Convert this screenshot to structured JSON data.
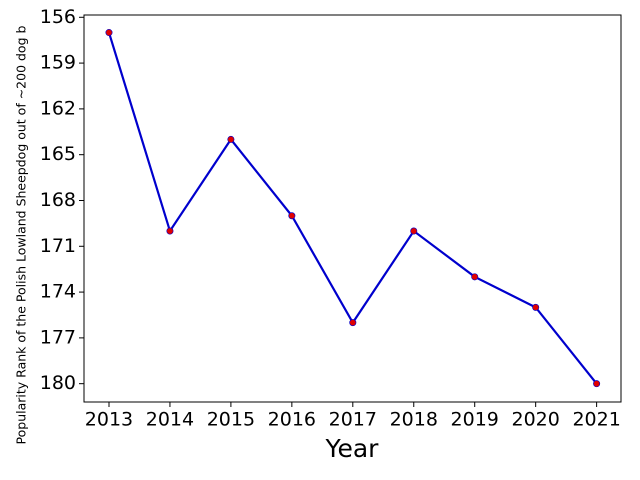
{
  "chart_data": {
    "type": "line",
    "x_label": "Year",
    "y_label": "Popularity Rank of the Polish Lowland Sheepdog out of ~200 dog b",
    "x": [
      2013,
      2014,
      2015,
      2016,
      2017,
      2018,
      2019,
      2020,
      2021
    ],
    "series": [
      {
        "color": "#0000cd",
        "marker_color": "#e00000",
        "values": [
          157,
          170,
          164,
          169,
          176,
          170,
          173,
          175,
          180
        ]
      }
    ],
    "xlim": [
      2012.59,
      2021.4
    ],
    "xticks": [
      2013,
      2014,
      2015,
      2016,
      2017,
      2018,
      2019,
      2020,
      2021
    ],
    "ylim": [
      181.2,
      155.85
    ],
    "yticks": [
      156,
      159,
      162,
      165,
      168,
      171,
      174,
      177,
      180
    ],
    "grid": false
  }
}
